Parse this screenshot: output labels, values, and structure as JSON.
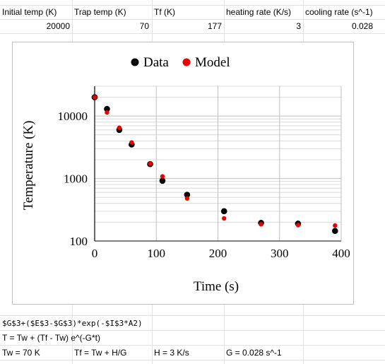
{
  "header_row": {
    "initial_temp_label": "Initial temp (K)",
    "trap_temp_label": "Trap temp (K)",
    "tf_label": "Tf (K)",
    "heating_rate_label": "heating rate (K/s)",
    "cooling_rate_label": "cooling rate (s^-1)"
  },
  "value_row": {
    "initial_temp": "20000",
    "trap_temp": "70",
    "tf": "177",
    "heating_rate": "3",
    "cooling_rate": "0.028"
  },
  "notes": {
    "formula": "$G$3+($E$3-$G$3)*exp(-$I$3*A2)",
    "equation": "T = Tw + (Tf - Tw) e^(-G*t)",
    "tw": "Tw = 70 K",
    "tf_def": "Tf = Tw + H/G",
    "h_def": "H = 3 K/s",
    "g_def": "G = 0.028 s^-1"
  },
  "colors": {
    "data": "#000000",
    "model": "#ee0000",
    "grid": "#d9d9d9",
    "axis": "#000000"
  },
  "chart_data": {
    "type": "scatter",
    "title": "",
    "xlabel": "Time (s)",
    "ylabel": "Temperature (K)",
    "xlim": [
      0,
      400
    ],
    "ylim": [
      100,
      30000
    ],
    "y_scale": "log",
    "x_ticks": [
      "0",
      "100",
      "200",
      "300",
      "400"
    ],
    "y_ticks": [
      "100",
      "1000",
      "10000"
    ],
    "grid": true,
    "legend": "top",
    "series": [
      {
        "name": "Data",
        "color": "#000000",
        "x": [
          0,
          20,
          40,
          60,
          90,
          110,
          150,
          210,
          270,
          330,
          390
        ],
        "y": [
          20000,
          13000,
          6000,
          3500,
          1700,
          920,
          550,
          300,
          195,
          190,
          145
        ]
      },
      {
        "name": "Model",
        "color": "#ee0000",
        "x": [
          0,
          20,
          40,
          60,
          90,
          110,
          150,
          210,
          270,
          330,
          390
        ],
        "y": [
          20000,
          11400,
          6500,
          3780,
          1730,
          1080,
          480,
          230,
          185,
          180,
          177
        ]
      }
    ]
  }
}
